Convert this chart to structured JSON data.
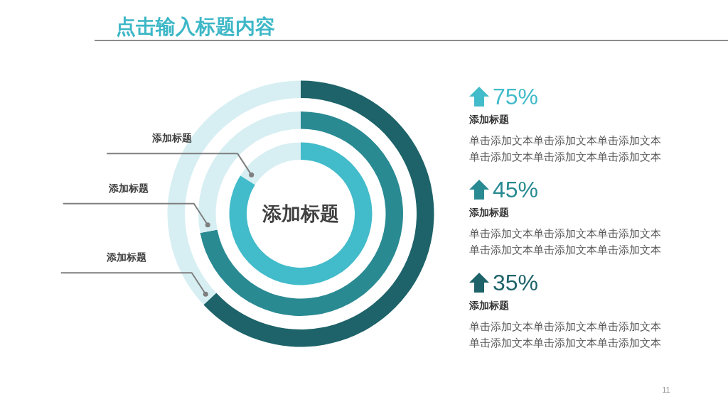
{
  "chart_data": [
    {
      "type": "donut",
      "title": "点击输入标题内容",
      "categories": [
        null,
        null
      ],
      "series": [
        {
          "name": "添加标题",
          "colors": [
            "#42bbca",
            "#d7eff3"
          ],
          "values": [
            84,
            16
          ]
        },
        {
          "name": "添加标题",
          "colors": [
            "#298a92",
            "#d7eff3"
          ],
          "values": [
            72,
            28
          ]
        },
        {
          "name": "添加标题",
          "colors": [
            "#1d6369",
            "#d7eff3"
          ],
          "values": [
            63,
            37
          ]
        }
      ],
      "annotations": [
        "添加标题"
      ]
    },
    {
      "type": "other",
      "annotations": [
        "75%",
        "添加标题",
        "单击添加文本单击添加文本单击添加文本",
        "单击添加文本单击添加文本单击添加文本",
        "45%",
        "添加标题",
        "单击添加文本单击添加文本单击添加文本",
        "单击添加文本单击添加文本单击添加文本",
        "35%",
        "添加标题",
        "单击添加文本单击添加文本单击添加文本",
        "单击添加文本单击添加文本单击添加文本",
        "11"
      ]
    }
  ]
}
